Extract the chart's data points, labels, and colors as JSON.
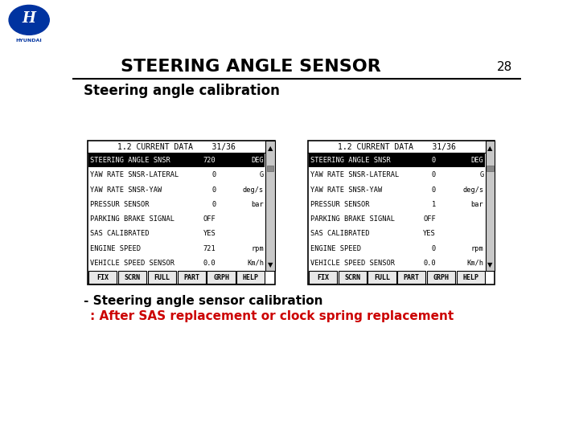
{
  "title": "STEERING ANGLE SENSOR",
  "page_num": "28",
  "section_title": "Steering angle calibration",
  "bullet_text": "- Steering angle sensor calibration",
  "red_text": ": After SAS replacement or clock spring replacement",
  "bg_color": "#ffffff",
  "hyundai_blue": "#0033a0",
  "left_panel": {
    "header": "1.2 CURRENT DATA",
    "page": "31/36",
    "rows": [
      {
        "label": "STEERING ANGLE SNSR",
        "value": "720",
        "unit": "DEG",
        "highlight": true
      },
      {
        "label": "YAW RATE SNSR-LATERAL",
        "value": "0",
        "unit": "G",
        "highlight": false
      },
      {
        "label": "YAW RATE SNSR-YAW",
        "value": "0",
        "unit": "deg/s",
        "highlight": false
      },
      {
        "label": "PRESSUR SENSOR",
        "value": "0",
        "unit": "bar",
        "highlight": false
      },
      {
        "label": "PARKING BRAKE SIGNAL",
        "value": "OFF",
        "unit": "",
        "highlight": false
      },
      {
        "label": "SAS CALIBRATED",
        "value": "YES",
        "unit": "",
        "highlight": false
      },
      {
        "label": "ENGINE SPEED",
        "value": "721",
        "unit": "rpm",
        "highlight": false
      },
      {
        "label": "VEHICLE SPEED SENSOR",
        "value": "0.0",
        "unit": "Km/h",
        "highlight": false
      }
    ],
    "buttons": [
      "FIX",
      "SCRN",
      "FULL",
      "PART",
      "GRPH",
      "HELP"
    ]
  },
  "right_panel": {
    "header": "1.2 CURRENT DATA",
    "page": "31/36",
    "rows": [
      {
        "label": "STEERING ANGLE SNSR",
        "value": "0",
        "unit": "DEG",
        "highlight": true
      },
      {
        "label": "YAW RATE SNSR-LATERAL",
        "value": "0",
        "unit": "G",
        "highlight": false
      },
      {
        "label": "YAW RATE SNSR-YAW",
        "value": "0",
        "unit": "deg/s",
        "highlight": false
      },
      {
        "label": "PRESSUR SENSOR",
        "value": "1",
        "unit": "bar",
        "highlight": false
      },
      {
        "label": "PARKING BRAKE SIGNAL",
        "value": "OFF",
        "unit": "",
        "highlight": false
      },
      {
        "label": "SAS CALIBRATED",
        "value": "YES",
        "unit": "",
        "highlight": false
      },
      {
        "label": "ENGINE SPEED",
        "value": "0",
        "unit": "rpm",
        "highlight": false
      },
      {
        "label": "VEHICLE SPEED SENSOR",
        "value": "0.0",
        "unit": "Km/h",
        "highlight": false
      }
    ],
    "buttons": [
      "FIX",
      "SCRN",
      "FULL",
      "PART",
      "GRPH",
      "HELP"
    ]
  }
}
